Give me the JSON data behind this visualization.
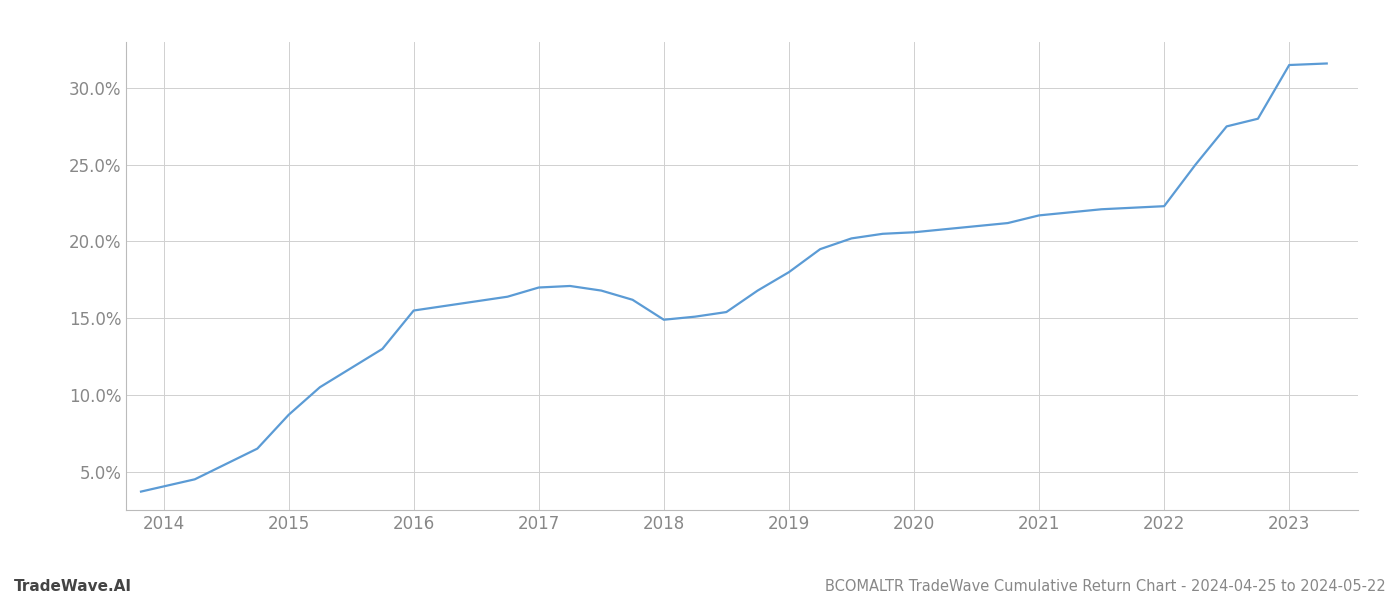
{
  "title": "BCOMALTR TradeWave Cumulative Return Chart - 2024-04-25 to 2024-05-22",
  "watermark": "TradeWave.AI",
  "line_color": "#5b9bd5",
  "background_color": "#ffffff",
  "grid_color": "#d0d0d0",
  "x_values": [
    2013.82,
    2014.25,
    2014.75,
    2015.0,
    2015.25,
    2015.75,
    2016.0,
    2016.25,
    2016.5,
    2016.75,
    2017.0,
    2017.25,
    2017.5,
    2017.75,
    2018.0,
    2018.25,
    2018.5,
    2018.75,
    2019.0,
    2019.25,
    2019.5,
    2019.75,
    2020.0,
    2020.25,
    2020.5,
    2020.75,
    2021.0,
    2021.25,
    2021.5,
    2021.75,
    2022.0,
    2022.25,
    2022.5,
    2022.75,
    2023.0,
    2023.3
  ],
  "y_values": [
    3.7,
    4.5,
    6.5,
    8.7,
    10.5,
    13.0,
    15.5,
    15.8,
    16.1,
    16.4,
    17.0,
    17.1,
    16.8,
    16.2,
    14.9,
    15.1,
    15.4,
    16.8,
    18.0,
    19.5,
    20.2,
    20.5,
    20.6,
    20.8,
    21.0,
    21.2,
    21.7,
    21.9,
    22.1,
    22.2,
    22.3,
    25.0,
    27.5,
    28.0,
    31.5,
    31.6
  ],
  "xlim": [
    2013.7,
    2023.55
  ],
  "ylim": [
    2.5,
    33.0
  ],
  "yticks": [
    5.0,
    10.0,
    15.0,
    20.0,
    25.0,
    30.0
  ],
  "xticks": [
    2014,
    2015,
    2016,
    2017,
    2018,
    2019,
    2020,
    2021,
    2022,
    2023
  ],
  "line_width": 1.6,
  "title_fontsize": 10.5,
  "tick_fontsize": 12,
  "watermark_fontsize": 11,
  "tick_color": "#888888",
  "footer_color": "#999999"
}
